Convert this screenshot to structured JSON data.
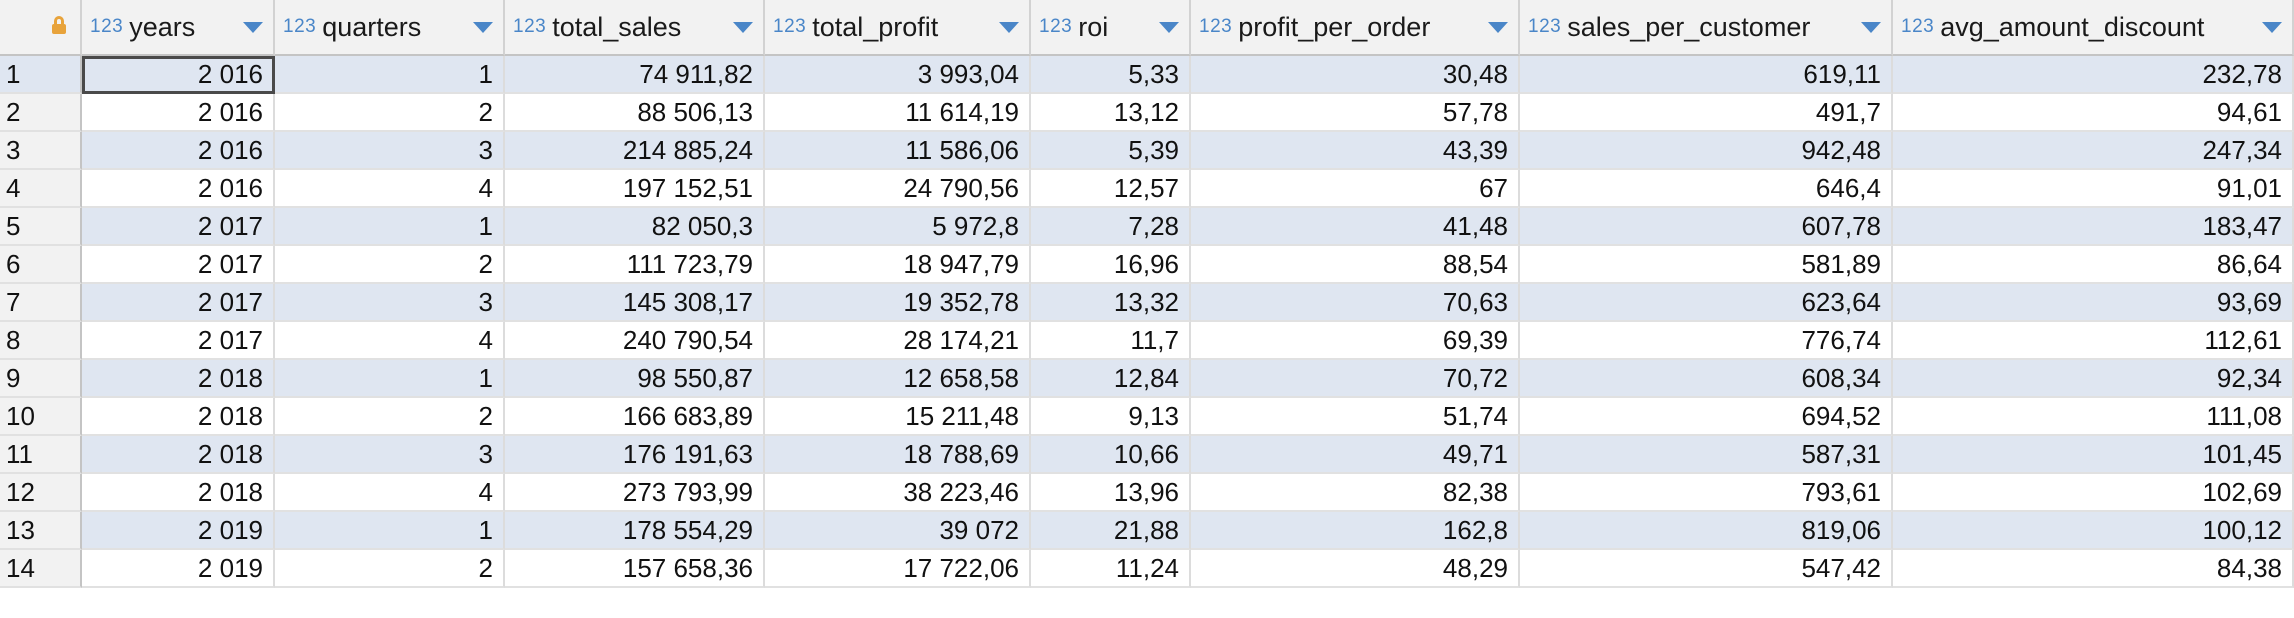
{
  "columns": [
    {
      "type": "123",
      "name": "years"
    },
    {
      "type": "123",
      "name": "quarters"
    },
    {
      "type": "123",
      "name": "total_sales"
    },
    {
      "type": "123",
      "name": "total_profit"
    },
    {
      "type": "123",
      "name": "roi"
    },
    {
      "type": "123",
      "name": "profit_per_order"
    },
    {
      "type": "123",
      "name": "sales_per_customer"
    },
    {
      "type": "123",
      "name": "avg_amount_discount"
    }
  ],
  "rows": [
    {
      "num": "1",
      "cells": [
        "2 016",
        "1",
        "74 911,82",
        "3 993,04",
        "5,33",
        "30,48",
        "619,11",
        "232,78"
      ]
    },
    {
      "num": "2",
      "cells": [
        "2 016",
        "2",
        "88 506,13",
        "11 614,19",
        "13,12",
        "57,78",
        "491,7",
        "94,61"
      ]
    },
    {
      "num": "3",
      "cells": [
        "2 016",
        "3",
        "214 885,24",
        "11 586,06",
        "5,39",
        "43,39",
        "942,48",
        "247,34"
      ]
    },
    {
      "num": "4",
      "cells": [
        "2 016",
        "4",
        "197 152,51",
        "24 790,56",
        "12,57",
        "67",
        "646,4",
        "91,01"
      ]
    },
    {
      "num": "5",
      "cells": [
        "2 017",
        "1",
        "82 050,3",
        "5 972,8",
        "7,28",
        "41,48",
        "607,78",
        "183,47"
      ]
    },
    {
      "num": "6",
      "cells": [
        "2 017",
        "2",
        "111 723,79",
        "18 947,79",
        "16,96",
        "88,54",
        "581,89",
        "86,64"
      ]
    },
    {
      "num": "7",
      "cells": [
        "2 017",
        "3",
        "145 308,17",
        "19 352,78",
        "13,32",
        "70,63",
        "623,64",
        "93,69"
      ]
    },
    {
      "num": "8",
      "cells": [
        "2 017",
        "4",
        "240 790,54",
        "28 174,21",
        "11,7",
        "69,39",
        "776,74",
        "112,61"
      ]
    },
    {
      "num": "9",
      "cells": [
        "2 018",
        "1",
        "98 550,87",
        "12 658,58",
        "12,84",
        "70,72",
        "608,34",
        "92,34"
      ]
    },
    {
      "num": "10",
      "cells": [
        "2 018",
        "2",
        "166 683,89",
        "15 211,48",
        "9,13",
        "51,74",
        "694,52",
        "111,08"
      ]
    },
    {
      "num": "11",
      "cells": [
        "2 018",
        "3",
        "176 191,63",
        "18 788,69",
        "10,66",
        "49,71",
        "587,31",
        "101,45"
      ]
    },
    {
      "num": "12",
      "cells": [
        "2 018",
        "4",
        "273 793,99",
        "38 223,46",
        "13,96",
        "82,38",
        "793,61",
        "102,69"
      ]
    },
    {
      "num": "13",
      "cells": [
        "2 019",
        "1",
        "178 554,29",
        "39 072",
        "21,88",
        "162,8",
        "819,06",
        "100,12"
      ]
    },
    {
      "num": "14",
      "cells": [
        "2 019",
        "2",
        "157 658,36",
        "17 722,06",
        "11,24",
        "48,29",
        "547,42",
        "84,38"
      ]
    }
  ],
  "colors": {
    "type_icon": "#4a86c8",
    "band_row": "#dfe6f1",
    "lock": "#e8a33b"
  }
}
